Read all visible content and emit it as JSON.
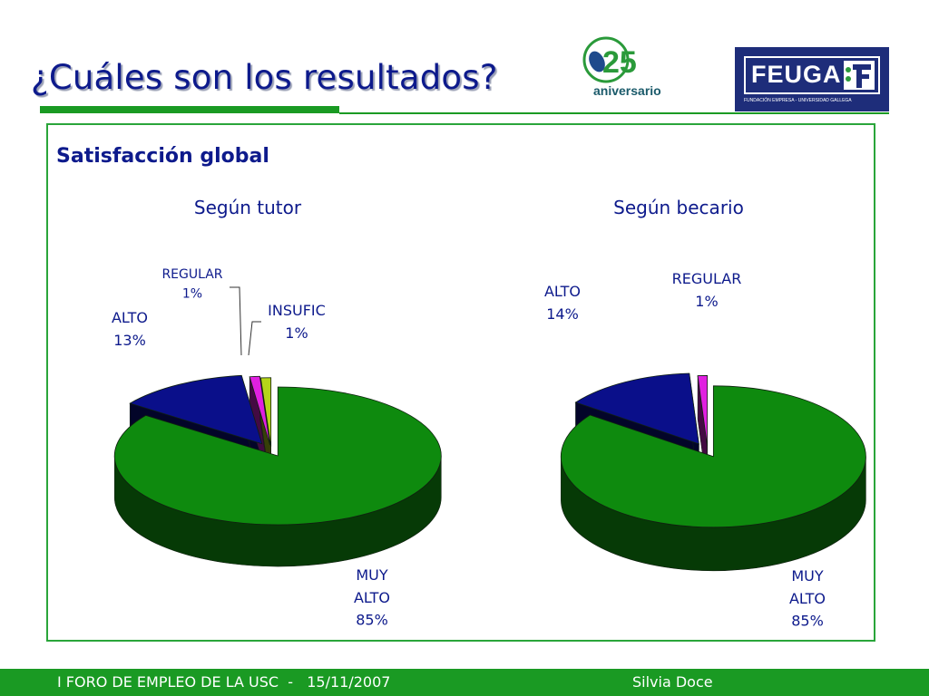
{
  "header": {
    "title": "¿Cuáles son los resultados?",
    "anniversary_logo_text": "aniversario",
    "feuga_logo_text": "FEUGA",
    "feuga_logo_subtext": "FUNDACIÓN EMPRESA - UNIVERSIDAD GALLEGA"
  },
  "section": {
    "title": "Satisfacción global"
  },
  "chart_data": [
    {
      "type": "pie",
      "title": "Según tutor",
      "slices": [
        {
          "label_lines": [
            "MUY",
            "ALTO",
            "85%"
          ],
          "value": 85,
          "color": "#0e8a0e"
        },
        {
          "label_lines": [
            "ALTO",
            "13%"
          ],
          "value": 13,
          "color": "#0a0f8a"
        },
        {
          "label_lines": [
            "REGULAR",
            "1%"
          ],
          "value": 1,
          "color": "#e020e0"
        },
        {
          "label_lines": [
            "INSUFIC",
            "1%"
          ],
          "value": 1,
          "color": "#b5d419"
        }
      ]
    },
    {
      "type": "pie",
      "title": "Según becario",
      "slices": [
        {
          "label_lines": [
            "MUY",
            "ALTO",
            "85%"
          ],
          "value": 85,
          "color": "#0e8a0e"
        },
        {
          "label_lines": [
            "ALTO",
            "14%"
          ],
          "value": 14,
          "color": "#0a0f8a"
        },
        {
          "label_lines": [
            "REGULAR",
            "1%"
          ],
          "value": 1,
          "color": "#e020e0"
        }
      ]
    }
  ],
  "footer": {
    "left": "I FORO DE EMPLEO DE LA USC  -   15/11/2007",
    "right": "Silvia Doce"
  }
}
